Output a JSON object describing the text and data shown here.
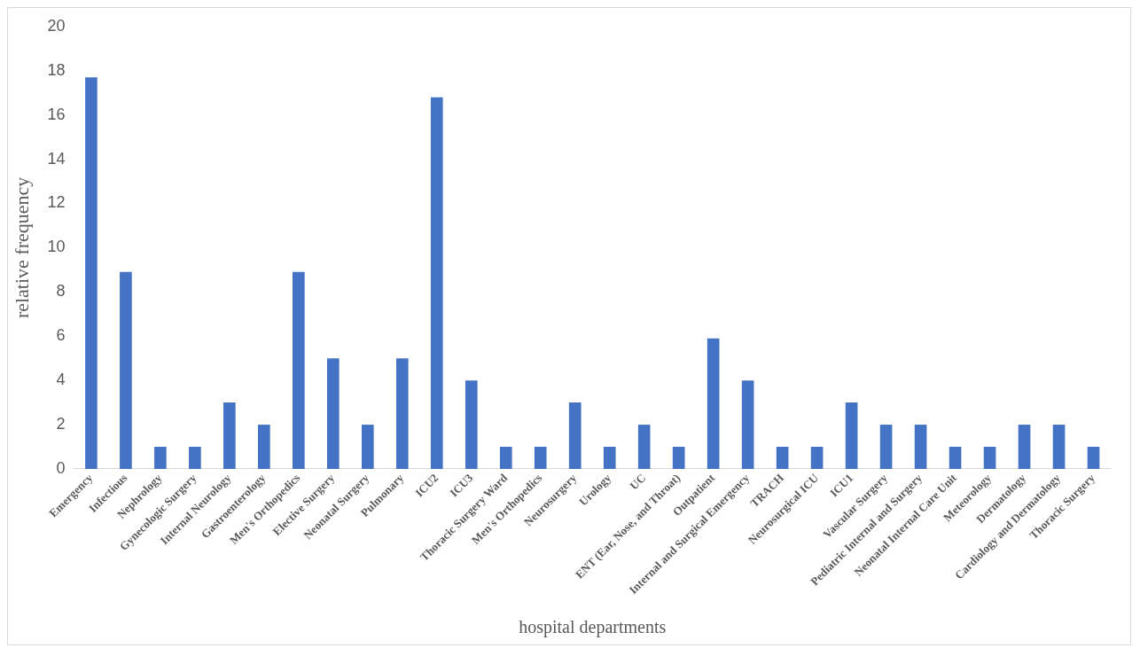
{
  "chart_data": {
    "type": "bar",
    "xlabel": "hospital departments",
    "ylabel": "relative frequency",
    "categories": [
      "Emergency",
      "Infectious",
      "Nephrology",
      "Gynecologic Surgery",
      "Internal Neurology",
      "Gastroenterology",
      "Men's Orthopedics",
      "Elective Surgery",
      "Neonatal Surgery",
      "Pulmonary",
      "ICU2",
      "ICU3",
      "Thoracic Surgery Ward",
      "Men's Orthopedics",
      "Neurosurgery",
      "Urology",
      "UC",
      "ENT (Ear, Nose, and Throat)",
      "Outpatient",
      "Internal and Surgical Emergency",
      "TRACH",
      "Neurosurgical ICU",
      "ICU1",
      "Vascular Surgery",
      "Pediatric Internal and Surgery",
      "Neonatal Internal Care Unit",
      "Meteorology",
      "Dermatology",
      "Cardiology and Dermatology",
      "Thoracic Surgery"
    ],
    "values": [
      17.7,
      8.9,
      1,
      1,
      3,
      2,
      8.9,
      5,
      2,
      5,
      16.8,
      4,
      1,
      1,
      3,
      1,
      2,
      1,
      5.9,
      4,
      1,
      1,
      3,
      2,
      2,
      1,
      1,
      2,
      2,
      1
    ],
    "color": "#4472c4",
    "ylim": [
      0,
      20
    ],
    "yticks": [
      0,
      2,
      4,
      6,
      8,
      10,
      12,
      14,
      16,
      18,
      20
    ],
    "grid": false,
    "legend": false
  }
}
